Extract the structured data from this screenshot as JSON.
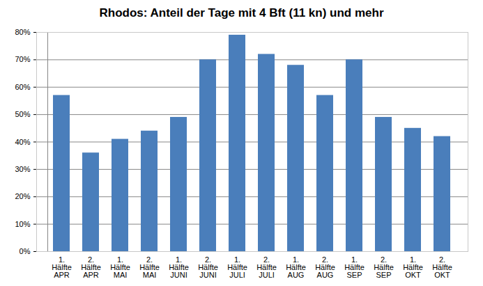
{
  "chart_data": {
    "type": "bar",
    "title": "Rhodos: Anteil der Tage mit 4 Bft (11 kn) und mehr",
    "categories": [
      "1.\nHälfte\nAPR",
      "2.\nHälfte\nAPR",
      "1.\nHälfte\nMAI",
      "2.\nHälfte\nMAI",
      "1.\nHälfte\nJUNI",
      "2.\nHälfte\nJUNI",
      "1.\nHälfte\nJULI",
      "2.\nHälfte\nJULI",
      "1.\nHälfte\nAUG",
      "2.\nHälfte\nAUG",
      "1.\nHälfte\nSEP",
      "2.\nHälfte\nSEP",
      "1.\nHälfte\nOKT",
      "2.\nHälfte\nOKT"
    ],
    "values": [
      57,
      36,
      41,
      44,
      49,
      70,
      79,
      72,
      68,
      57,
      70,
      49,
      45,
      42
    ],
    "color": "#4a7ebb",
    "ylim": [
      0,
      80
    ],
    "yticks": [
      {
        "value": 0,
        "label": "0%"
      },
      {
        "value": 10,
        "label": "10%"
      },
      {
        "value": 20,
        "label": "20%"
      },
      {
        "value": 30,
        "label": "30%"
      },
      {
        "value": 40,
        "label": "40%"
      },
      {
        "value": 50,
        "label": "50%"
      },
      {
        "value": 60,
        "label": "60%"
      },
      {
        "value": 70,
        "label": "70%"
      },
      {
        "value": 80,
        "label": "80%"
      }
    ],
    "grid": true
  }
}
